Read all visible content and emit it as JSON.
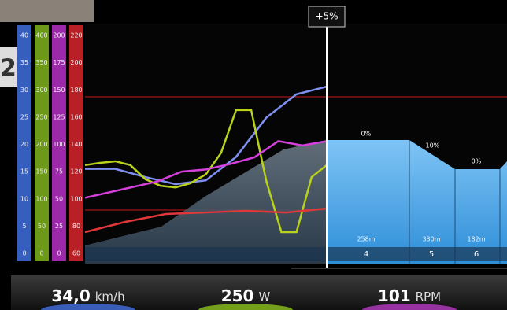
{
  "corner_digit": "2",
  "cursor_label": "+5%",
  "scales": [
    {
      "color": "#3f6fe0",
      "lim": [
        0,
        40
      ],
      "ticks": [
        0,
        5,
        10,
        15,
        20,
        25,
        30,
        35,
        40
      ]
    },
    {
      "color": "#7fb51c",
      "lim": [
        0,
        400
      ],
      "ticks": [
        0,
        50,
        100,
        150,
        200,
        250,
        300,
        350,
        400
      ]
    },
    {
      "color": "#b72fc8",
      "lim": [
        0,
        200
      ],
      "ticks": [
        0,
        25,
        50,
        75,
        100,
        125,
        150,
        175,
        200
      ]
    },
    {
      "color": "#d8262b",
      "lim": [
        60,
        220
      ],
      "ticks": [
        60,
        80,
        100,
        120,
        140,
        160,
        180,
        200,
        220
      ]
    }
  ],
  "series": [
    {
      "color": "#7f8ff0",
      "scale": 0,
      "values": [
        15.5,
        15.5,
        14,
        12.7,
        13.4,
        17.7,
        24.9,
        29.2,
        30.6
      ]
    },
    {
      "color": "#b9d21a",
      "scale": 1,
      "values": [
        162,
        166,
        169,
        162,
        136,
        124,
        121,
        129,
        145,
        184,
        263,
        263,
        133,
        39,
        39,
        140,
        162
      ]
    },
    {
      "color": "#d53fdc",
      "scale": 2,
      "values": [
        51,
        56,
        61,
        66,
        75,
        77,
        82,
        88,
        103,
        99,
        103
      ]
    },
    {
      "color": "#e0383a",
      "scale": 3,
      "values": [
        75.6,
        83.1,
        88.9,
        90,
        91.2,
        90,
        92.9
      ]
    }
  ],
  "segments": [
    {
      "slope": "0%",
      "distance": "258m",
      "number": "4"
    },
    {
      "slope": "-10%",
      "distance": "330m",
      "number": "5"
    },
    {
      "slope": "0%",
      "distance": "182m",
      "number": "6"
    }
  ],
  "readouts": [
    {
      "value": "34,0",
      "unit": "km/h",
      "color": "#4a7cff"
    },
    {
      "value": "250",
      "unit": "W",
      "color": "#9ddc1e"
    },
    {
      "value": "101",
      "unit": "RPM",
      "color": "#d03ee0"
    }
  ]
}
